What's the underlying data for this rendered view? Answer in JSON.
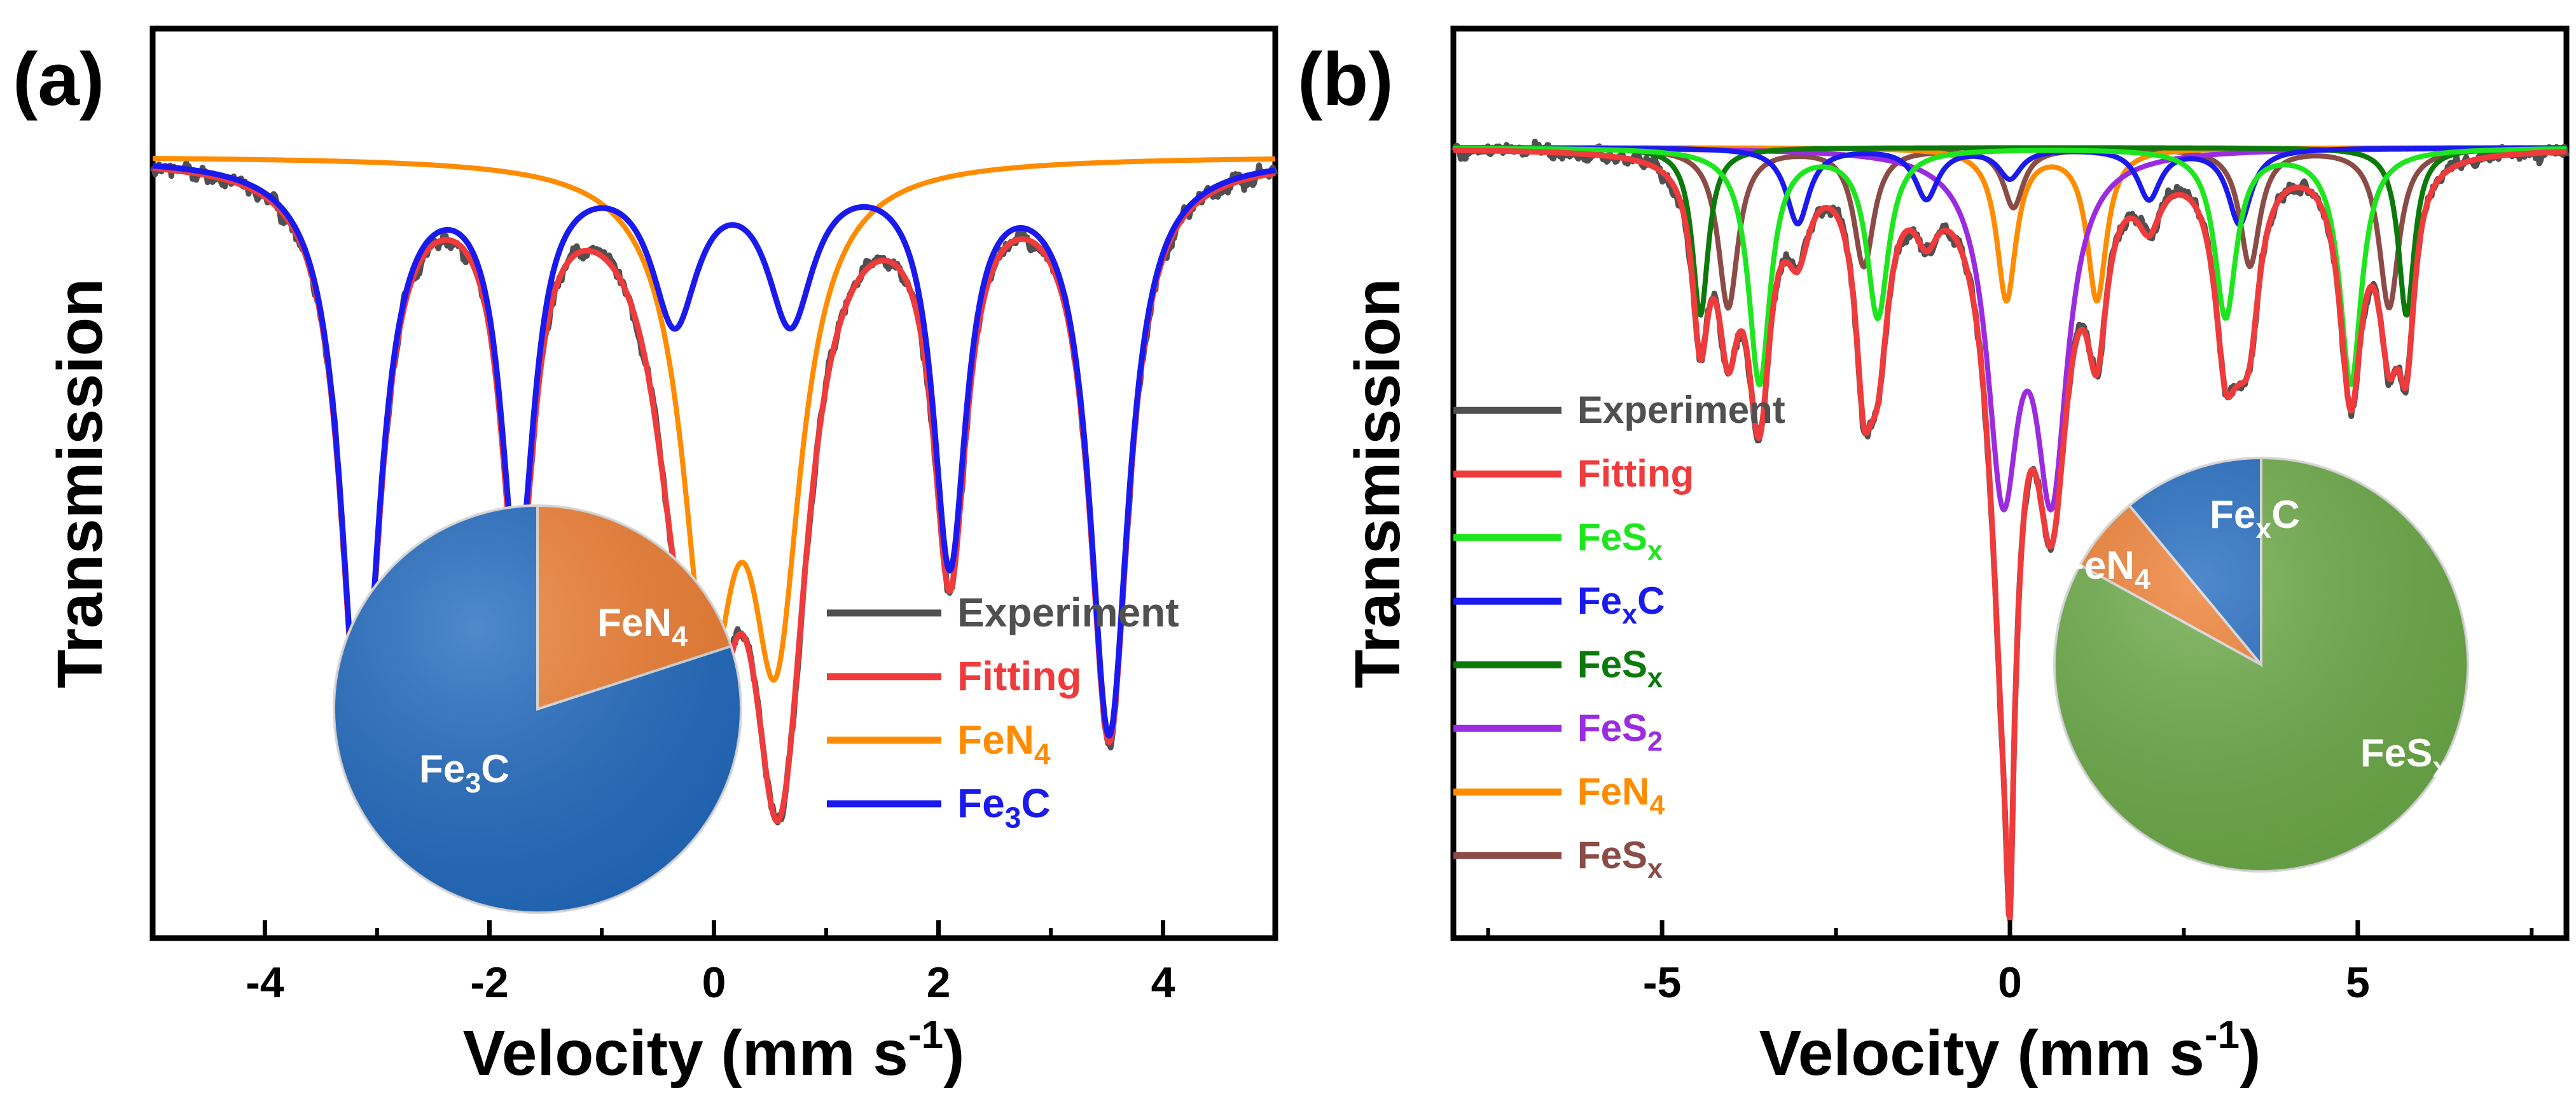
{
  "chart_data": [
    {
      "type": "line",
      "panel_label": "(a)",
      "xlabel": "Velocity (mm s",
      "xlabel_sup": "-1",
      "xlabel_end": ")",
      "ylabel": "Transmission",
      "xlim": [
        -5,
        5
      ],
      "ylim": [
        0,
        1
      ],
      "xticks": [
        -4,
        -2,
        0,
        2,
        4
      ],
      "xtick_labels": [
        "-4",
        "-2",
        "0",
        "2",
        "4"
      ],
      "grid": false,
      "legend_position": "bottom-right",
      "baseline": 0.89,
      "noise": 0.013,
      "experiment_color": "#505050",
      "series": [
        {
          "name": "Experiment",
          "label": "Experiment",
          "color": "#505050",
          "kind": "experiment"
        },
        {
          "name": "Fitting",
          "label": "Fitting",
          "color": "#ef3b3b",
          "kind": "sum"
        },
        {
          "name": "FeN4",
          "label": "FeN",
          "sub": "4",
          "color": "#ff8c00",
          "peaks": [
            {
              "x": -0.05,
              "depth": 0.53,
              "width": 0.55
            },
            {
              "x": 0.55,
              "depth": 0.53,
              "width": 0.55
            }
          ]
        },
        {
          "name": "Fe3C",
          "label": "Fe",
          "sub": "3",
          "tail": "C",
          "color": "#1a1aee",
          "peaks": [
            {
              "x": -3.15,
              "depth": 0.68,
              "width": 0.42
            },
            {
              "x": -1.75,
              "depth": 0.47,
              "width": 0.36
            },
            {
              "x": -0.35,
              "depth": 0.18,
              "width": 0.5
            },
            {
              "x": 0.68,
              "depth": 0.18,
              "width": 0.5
            },
            {
              "x": 2.1,
              "depth": 0.47,
              "width": 0.36
            },
            {
              "x": 3.52,
              "depth": 0.68,
              "width": 0.42
            }
          ]
        }
      ],
      "pie": {
        "slices": [
          {
            "name": "FeN4",
            "label": "FeN",
            "sub": "4",
            "fraction": 0.2,
            "color": "#ee7d31"
          },
          {
            "name": "Fe3C",
            "label": "Fe",
            "sub": "3",
            "tail": "C",
            "fraction": 0.8,
            "color": "#1f68be"
          }
        ]
      }
    },
    {
      "type": "line",
      "panel_label": "(b)",
      "xlabel": "Velocity (mm s",
      "xlabel_sup": "-1",
      "xlabel_end": ")",
      "ylabel": "Transmission",
      "xlim": [
        -8,
        8
      ],
      "ylim": [
        0,
        1
      ],
      "xticks": [
        -5,
        0,
        5
      ],
      "xtick_labels": [
        "-5",
        "0",
        "5"
      ],
      "grid": false,
      "legend_position": "bottom-left",
      "baseline": 0.9,
      "noise": 0.013,
      "experiment_color": "#505050",
      "series": [
        {
          "name": "Experiment",
          "label": "Experiment",
          "color": "#505050",
          "kind": "experiment"
        },
        {
          "name": "Fitting",
          "label": "Fitting",
          "color": "#ef3b3b",
          "kind": "sum"
        },
        {
          "name": "FeSx (light green)",
          "label": "FeS",
          "sub": "x",
          "color": "#1ee61e",
          "peaks": [
            {
              "x": -3.6,
              "depth": 0.28,
              "width": 0.38
            },
            {
              "x": -1.9,
              "depth": 0.2,
              "width": 0.38
            },
            {
              "x": 3.1,
              "depth": 0.2,
              "width": 0.38
            },
            {
              "x": 4.9,
              "depth": 0.28,
              "width": 0.38
            }
          ]
        },
        {
          "name": "FexC",
          "label": "Fe",
          "sub": "x",
          "tail": "C",
          "color": "#1a1aee",
          "peaks": [
            {
              "x": -3.05,
              "depth": 0.09,
              "width": 0.4
            },
            {
              "x": -1.2,
              "depth": 0.06,
              "width": 0.4
            },
            {
              "x": 0.0,
              "depth": 0.035,
              "width": 0.4
            },
            {
              "x": 2.0,
              "depth": 0.06,
              "width": 0.4
            },
            {
              "x": 3.3,
              "depth": 0.09,
              "width": 0.4
            }
          ]
        },
        {
          "name": "FeSx (dark green)",
          "label": "FeS",
          "sub": "x",
          "color": "#0b7a0b",
          "peaks": [
            {
              "x": -4.45,
              "depth": 0.2,
              "width": 0.28
            },
            {
              "x": 5.7,
              "depth": 0.2,
              "width": 0.28
            }
          ]
        },
        {
          "name": "FeS2",
          "label": "FeS",
          "sub": "2",
          "color": "#9b2be0",
          "peaks": [
            {
              "x": -0.1,
              "depth": 0.38,
              "width": 0.55
            },
            {
              "x": 0.6,
              "depth": 0.38,
              "width": 0.55
            }
          ]
        },
        {
          "name": "FeN4",
          "label": "FeN",
          "sub": "4",
          "color": "#ff8c00",
          "peaks": [
            {
              "x": -0.05,
              "depth": 0.18,
              "width": 0.34
            },
            {
              "x": 1.25,
              "depth": 0.18,
              "width": 0.34
            }
          ]
        },
        {
          "name": "FeSx (brown)",
          "label": "FeS",
          "sub": "x",
          "color": "#8b4b46",
          "peaks": [
            {
              "x": -4.05,
              "depth": 0.19,
              "width": 0.35
            },
            {
              "x": -2.1,
              "depth": 0.14,
              "width": 0.35
            },
            {
              "x": 0.05,
              "depth": 0.07,
              "width": 0.35
            },
            {
              "x": 3.45,
              "depth": 0.14,
              "width": 0.35
            },
            {
              "x": 5.45,
              "depth": 0.19,
              "width": 0.35
            }
          ]
        }
      ],
      "extra_dips": [
        {
          "x": 0.0,
          "depth": 0.24,
          "width": 0.11
        },
        {
          "x": -2.1,
          "depth": 0.07,
          "width": 0.22
        },
        {
          "x": -3.7,
          "depth": 0.02,
          "width": 0.3
        }
      ],
      "pie": {
        "slices": [
          {
            "name": "FeSx",
            "label": "FeS",
            "sub": "x",
            "fraction": 0.83,
            "color": "#6aa945"
          },
          {
            "name": "FeN4",
            "label": "FeN",
            "sub": "4",
            "fraction": 0.06,
            "color": "#ee7d31"
          },
          {
            "name": "FexC",
            "label": "Fe",
            "sub": "x",
            "tail": "C",
            "fraction": 0.11,
            "color": "#1f68be"
          }
        ]
      }
    }
  ]
}
